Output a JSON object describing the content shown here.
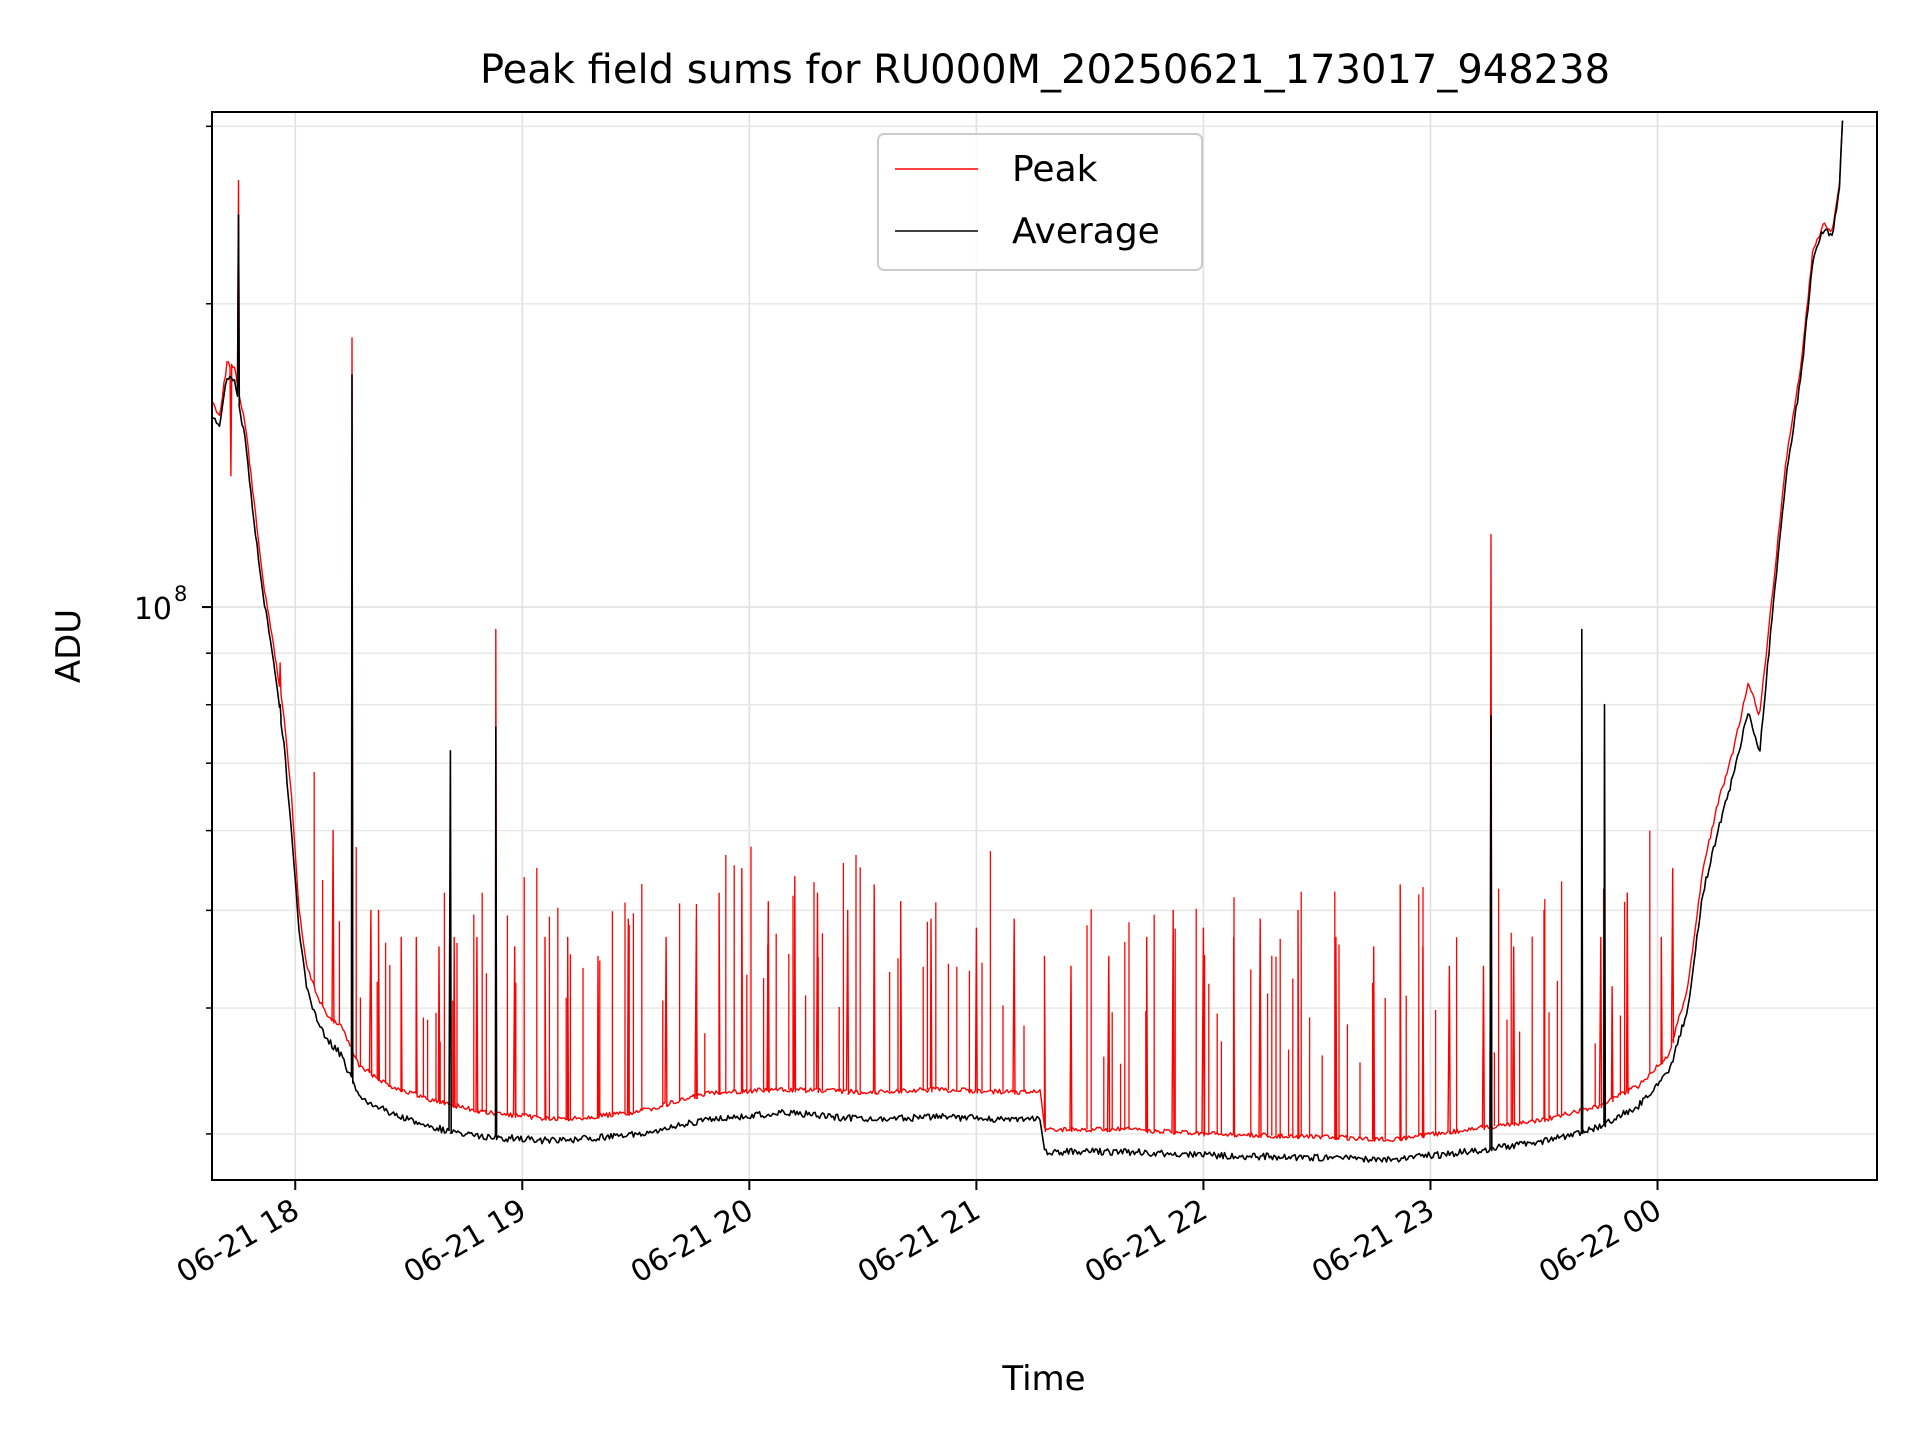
{
  "chart_data": {
    "type": "line",
    "title": "Peak field sums for RU000M_20250621_173017_948238",
    "xlabel": "Time",
    "ylabel": "ADU",
    "y_scale": "log",
    "grid": true,
    "grid_minor": true,
    "legend_location": "upper center",
    "xlim": [
      "2025-06-21 17:38",
      "2025-06-22 00:58"
    ],
    "ylim": [
      27000000,
      310000000
    ],
    "x_ticks": [
      {
        "value": "2025-06-21 18:00",
        "label": "06-21 18"
      },
      {
        "value": "2025-06-21 19:00",
        "label": "06-21 19"
      },
      {
        "value": "2025-06-21 20:00",
        "label": "06-21 20"
      },
      {
        "value": "2025-06-21 21:00",
        "label": "06-21 21"
      },
      {
        "value": "2025-06-21 22:00",
        "label": "06-21 22"
      },
      {
        "value": "2025-06-21 23:00",
        "label": "06-21 23"
      },
      {
        "value": "2025-06-22 00:00",
        "label": "06-22 00"
      }
    ],
    "y_ticks": [
      {
        "value": 100000000,
        "label_base": "10",
        "label_exp": "8"
      }
    ],
    "y_minor_ticks": [
      30000000,
      40000000,
      50000000,
      60000000,
      70000000,
      80000000,
      90000000,
      200000000,
      300000000
    ],
    "series": [
      {
        "name": "Peak",
        "color": "#ff0000",
        "baseline": [
          [
            "2025-06-21 17:38",
            160000000
          ],
          [
            "2025-06-21 17:40",
            155000000
          ],
          [
            "2025-06-21 17:42",
            175000000
          ],
          [
            "2025-06-21 17:44",
            172000000
          ],
          [
            "2025-06-21 17:47",
            150000000
          ],
          [
            "2025-06-21 17:49",
            128000000
          ],
          [
            "2025-06-21 17:52",
            103000000
          ],
          [
            "2025-06-21 17:54",
            93000000
          ],
          [
            "2025-06-21 17:57",
            78000000
          ],
          [
            "2025-06-21 17:59",
            65000000
          ],
          [
            "2025-06-21 18:01",
            50000000
          ],
          [
            "2025-06-21 18:03",
            44000000
          ],
          [
            "2025-06-21 18:06",
            41000000
          ],
          [
            "2025-06-21 18:09",
            39000000
          ],
          [
            "2025-06-21 18:12",
            38500000
          ],
          [
            "2025-06-21 18:17",
            35000000
          ],
          [
            "2025-06-21 18:25",
            33500000
          ],
          [
            "2025-06-21 18:35",
            32500000
          ],
          [
            "2025-06-21 18:50",
            31500000
          ],
          [
            "2025-06-21 19:10",
            31000000
          ],
          [
            "2025-06-21 19:30",
            31500000
          ],
          [
            "2025-06-21 19:50",
            33000000
          ],
          [
            "2025-06-21 20:10",
            33200000
          ],
          [
            "2025-06-21 20:30",
            33000000
          ],
          [
            "2025-06-21 20:50",
            33200000
          ],
          [
            "2025-06-21 21:10",
            33000000
          ],
          [
            "2025-06-21 21:17",
            33000000
          ],
          [
            "2025-06-21 21:18",
            30300000
          ],
          [
            "2025-06-21 21:40",
            30300000
          ],
          [
            "2025-06-21 22:00",
            30000000
          ],
          [
            "2025-06-21 22:30",
            29800000
          ],
          [
            "2025-06-21 22:50",
            29600000
          ],
          [
            "2025-06-21 23:10",
            30300000
          ],
          [
            "2025-06-21 23:30",
            31000000
          ],
          [
            "2025-06-21 23:45",
            32000000
          ],
          [
            "2025-06-21 23:55",
            33500000
          ],
          [
            "2025-06-22 00:03",
            36000000
          ],
          [
            "2025-06-22 00:08",
            42000000
          ],
          [
            "2025-06-22 00:12",
            55000000
          ],
          [
            "2025-06-22 00:16",
            64000000
          ],
          [
            "2025-06-22 00:20",
            72000000
          ],
          [
            "2025-06-22 00:24",
            84000000
          ],
          [
            "2025-06-22 00:27",
            78000000
          ],
          [
            "2025-06-22 00:30",
            100000000
          ],
          [
            "2025-06-22 00:34",
            140000000
          ],
          [
            "2025-06-22 00:38",
            175000000
          ],
          [
            "2025-06-22 00:41",
            225000000
          ],
          [
            "2025-06-22 00:44",
            240000000
          ],
          [
            "2025-06-22 00:46",
            235000000
          ],
          [
            "2025-06-22 00:48",
            260000000
          ],
          [
            "2025-06-22 00:49",
            310000000
          ]
        ],
        "spikes": [
          [
            "2025-06-21 17:43",
            135000000
          ],
          [
            "2025-06-21 17:45",
            265000000
          ],
          [
            "2025-06-21 17:56",
            88000000
          ],
          [
            "2025-06-21 18:10",
            60000000
          ],
          [
            "2025-06-21 18:15",
            185000000
          ],
          [
            "2025-06-21 18:20",
            50000000
          ],
          [
            "2025-06-21 18:22",
            50000000
          ],
          [
            "2025-06-21 18:28",
            47000000
          ],
          [
            "2025-06-21 18:32",
            47000000
          ],
          [
            "2025-06-21 18:38",
            46000000
          ],
          [
            "2025-06-21 18:42",
            47000000
          ],
          [
            "2025-06-21 18:48",
            47000000
          ],
          [
            "2025-06-21 18:53",
            95000000
          ],
          [
            "2025-06-21 18:58",
            46000000
          ],
          [
            "2025-06-21 19:06",
            47000000
          ],
          [
            "2025-06-21 19:12",
            47000000
          ],
          [
            "2025-06-21 19:20",
            45000000
          ],
          [
            "2025-06-21 19:28",
            49000000
          ],
          [
            "2025-06-21 19:38",
            47000000
          ],
          [
            "2025-06-21 19:46",
            49000000
          ],
          [
            "2025-06-21 19:52",
            52000000
          ],
          [
            "2025-06-21 19:58",
            55000000
          ],
          [
            "2025-06-21 20:05",
            51000000
          ],
          [
            "2025-06-21 20:12",
            54000000
          ],
          [
            "2025-06-21 20:18",
            52000000
          ],
          [
            "2025-06-21 20:26",
            50000000
          ],
          [
            "2025-06-21 20:33",
            53000000
          ],
          [
            "2025-06-21 20:40",
            51000000
          ],
          [
            "2025-06-21 20:48",
            49000000
          ],
          [
            "2025-06-21 21:00",
            48000000
          ],
          [
            "2025-06-21 21:10",
            49000000
          ],
          [
            "2025-06-21 21:18",
            45000000
          ],
          [
            "2025-06-21 21:25",
            44000000
          ],
          [
            "2025-06-21 21:35",
            45000000
          ],
          [
            "2025-06-21 21:45",
            47000000
          ],
          [
            "2025-06-21 21:52",
            50000000
          ],
          [
            "2025-06-21 22:00",
            48000000
          ],
          [
            "2025-06-21 22:08",
            47000000
          ],
          [
            "2025-06-21 22:15",
            49000000
          ],
          [
            "2025-06-21 22:25",
            50000000
          ],
          [
            "2025-06-21 22:35",
            47000000
          ],
          [
            "2025-06-21 22:45",
            46000000
          ],
          [
            "2025-06-21 22:52",
            53000000
          ],
          [
            "2025-06-21 22:58",
            46000000
          ],
          [
            "2025-06-21 23:05",
            44000000
          ],
          [
            "2025-06-21 23:14",
            44000000
          ],
          [
            "2025-06-21 23:16",
            118000000
          ],
          [
            "2025-06-21 23:22",
            46000000
          ],
          [
            "2025-06-21 23:30",
            50000000
          ],
          [
            "2025-06-21 23:40",
            50000000
          ],
          [
            "2025-06-21 23:45",
            47000000
          ],
          [
            "2025-06-21 23:48",
            42000000
          ],
          [
            "2025-06-21 23:52",
            52000000
          ],
          [
            "2025-06-22 00:01",
            47000000
          ],
          [
            "2025-06-22 00:04",
            55000000
          ]
        ]
      },
      {
        "name": "Average",
        "color": "#000000",
        "baseline": [
          [
            "2025-06-21 17:38",
            155000000
          ],
          [
            "2025-06-21 17:40",
            150000000
          ],
          [
            "2025-06-21 17:42",
            170000000
          ],
          [
            "2025-06-21 17:44",
            168000000
          ],
          [
            "2025-06-21 17:47",
            145000000
          ],
          [
            "2025-06-21 17:49",
            122000000
          ],
          [
            "2025-06-21 17:52",
            100000000
          ],
          [
            "2025-06-21 17:54",
            90000000
          ],
          [
            "2025-06-21 17:57",
            73000000
          ],
          [
            "2025-06-21 17:59",
            60000000
          ],
          [
            "2025-06-21 18:01",
            48000000
          ],
          [
            "2025-06-21 18:03",
            42000000
          ],
          [
            "2025-06-21 18:06",
            38500000
          ],
          [
            "2025-06-21 18:09",
            37000000
          ],
          [
            "2025-06-21 18:12",
            36000000
          ],
          [
            "2025-06-21 18:17",
            32500000
          ],
          [
            "2025-06-21 18:25",
            31500000
          ],
          [
            "2025-06-21 18:35",
            30500000
          ],
          [
            "2025-06-21 18:50",
            29800000
          ],
          [
            "2025-06-21 19:10",
            29500000
          ],
          [
            "2025-06-21 19:30",
            30000000
          ],
          [
            "2025-06-21 19:50",
            31000000
          ],
          [
            "2025-06-21 20:10",
            31500000
          ],
          [
            "2025-06-21 20:30",
            31000000
          ],
          [
            "2025-06-21 20:50",
            31200000
          ],
          [
            "2025-06-21 21:10",
            31000000
          ],
          [
            "2025-06-21 21:17",
            31000000
          ],
          [
            "2025-06-21 21:18",
            28800000
          ],
          [
            "2025-06-21 21:40",
            28800000
          ],
          [
            "2025-06-21 22:00",
            28600000
          ],
          [
            "2025-06-21 22:30",
            28400000
          ],
          [
            "2025-06-21 22:50",
            28300000
          ],
          [
            "2025-06-21 23:10",
            28800000
          ],
          [
            "2025-06-21 23:30",
            29500000
          ],
          [
            "2025-06-21 23:45",
            30500000
          ],
          [
            "2025-06-21 23:55",
            32000000
          ],
          [
            "2025-06-22 00:03",
            34500000
          ],
          [
            "2025-06-22 00:08",
            40000000
          ],
          [
            "2025-06-22 00:12",
            52000000
          ],
          [
            "2025-06-22 00:16",
            60000000
          ],
          [
            "2025-06-22 00:20",
            68000000
          ],
          [
            "2025-06-22 00:24",
            79000000
          ],
          [
            "2025-06-22 00:27",
            72000000
          ],
          [
            "2025-06-22 00:30",
            95000000
          ],
          [
            "2025-06-22 00:34",
            135000000
          ],
          [
            "2025-06-22 00:38",
            170000000
          ],
          [
            "2025-06-22 00:41",
            220000000
          ],
          [
            "2025-06-22 00:44",
            238000000
          ],
          [
            "2025-06-22 00:46",
            232000000
          ],
          [
            "2025-06-22 00:48",
            258000000
          ],
          [
            "2025-06-22 00:49",
            310000000
          ]
        ],
        "spikes": [
          [
            "2025-06-21 17:45",
            245000000
          ],
          [
            "2025-06-21 17:56",
            80000000
          ],
          [
            "2025-06-21 18:15",
            170000000
          ],
          [
            "2025-06-21 18:41",
            72000000
          ],
          [
            "2025-06-21 18:53",
            76000000
          ],
          [
            "2025-06-21 23:16",
            78000000
          ],
          [
            "2025-06-21 23:40",
            95000000
          ],
          [
            "2025-06-21 23:46",
            80000000
          ]
        ]
      }
    ]
  }
}
